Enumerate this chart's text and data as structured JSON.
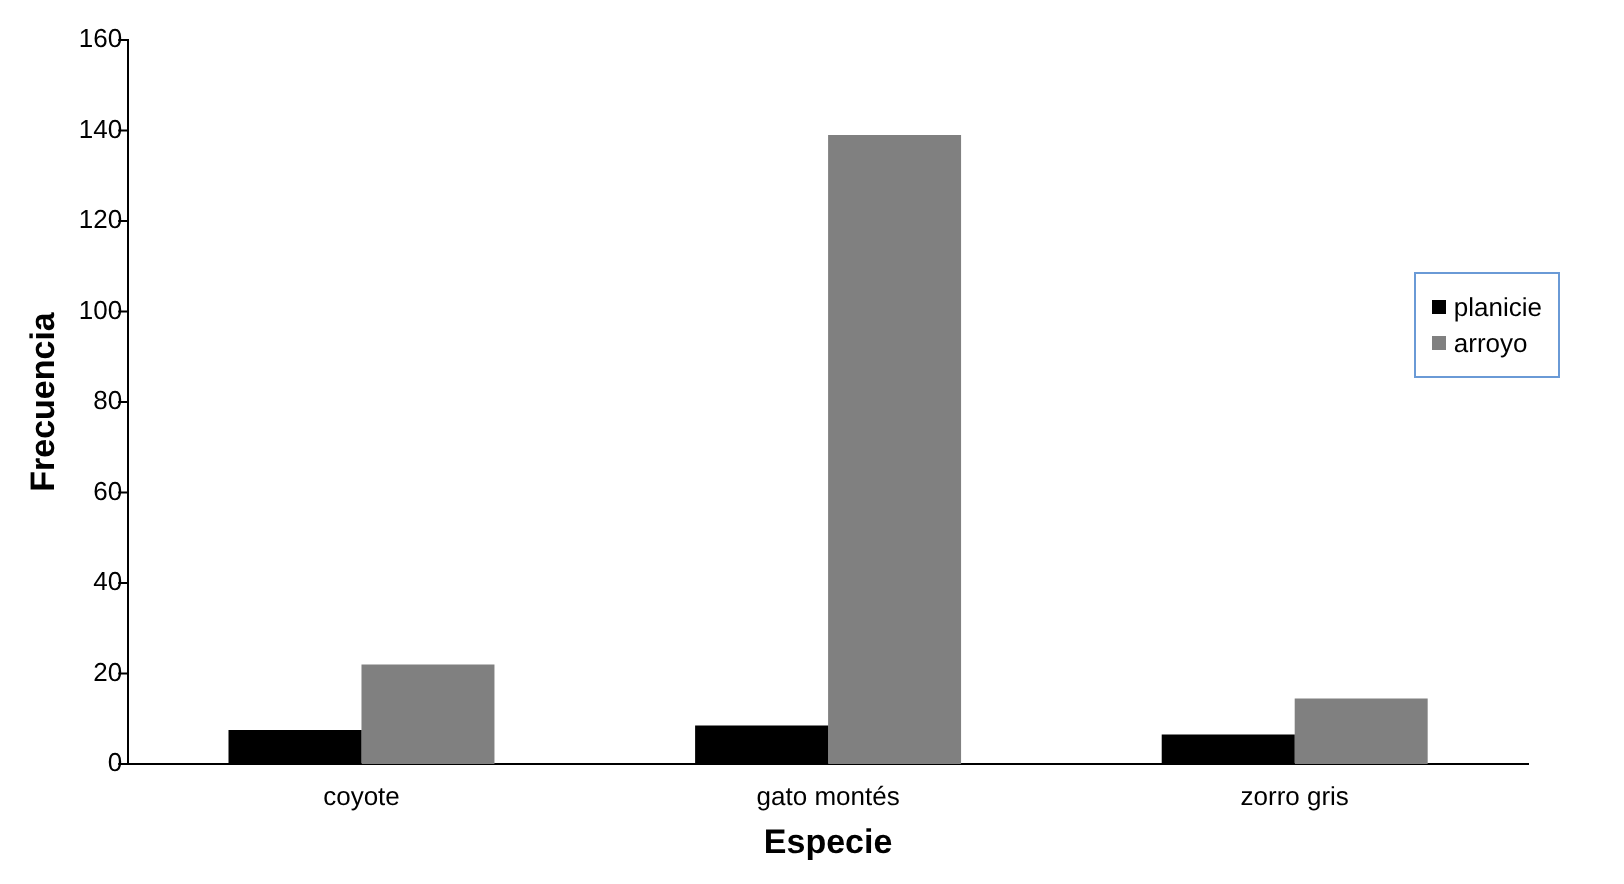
{
  "chart_data": {
    "type": "bar",
    "xlabel": "Especie",
    "ylabel": "Frecuencia",
    "categories": [
      "coyote",
      "gato montés",
      "zorro gris"
    ],
    "series": [
      {
        "name": "planicie",
        "color": "#000000",
        "values": [
          7.5,
          8.5,
          6.5
        ]
      },
      {
        "name": "arroyo",
        "color": "#808080",
        "values": [
          22,
          139,
          14.5
        ]
      }
    ],
    "ylim": [
      0,
      160
    ],
    "yticks": [
      0,
      20,
      40,
      60,
      80,
      100,
      120,
      140,
      160
    ],
    "grid": false,
    "legend": "right"
  }
}
